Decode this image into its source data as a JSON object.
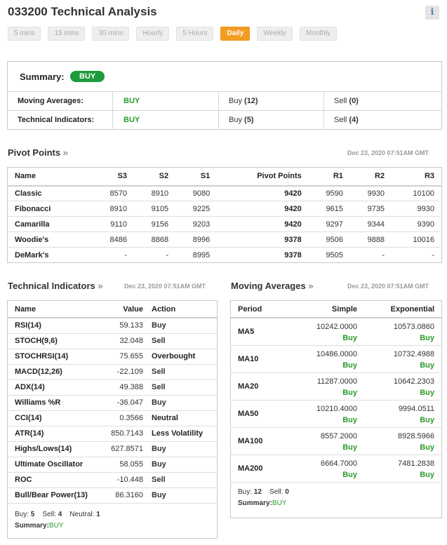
{
  "header": {
    "title": "033200 Technical Analysis",
    "info_icon": "i"
  },
  "timeframes": [
    {
      "label": "5 mins",
      "active": false
    },
    {
      "label": "15 mins",
      "active": false
    },
    {
      "label": "30 mins",
      "active": false
    },
    {
      "label": "Hourly",
      "active": false
    },
    {
      "label": "5 Hours",
      "active": false
    },
    {
      "label": "Daily",
      "active": true
    },
    {
      "label": "Weekly",
      "active": false
    },
    {
      "label": "Monthly",
      "active": false
    }
  ],
  "summary": {
    "label": "Summary:",
    "signal": "BUY",
    "rows": [
      {
        "name": "Moving Averages:",
        "signal": "BUY",
        "buy_label": "Buy",
        "buy_count": "(12)",
        "sell_label": "Sell",
        "sell_count": "(0)"
      },
      {
        "name": "Technical Indicators:",
        "signal": "BUY",
        "buy_label": "Buy",
        "buy_count": "(5)",
        "sell_label": "Sell",
        "sell_count": "(4)"
      }
    ]
  },
  "pivot_points": {
    "title": "Pivot Points",
    "arrow": "»",
    "timestamp": "Dec 23, 2020 07:51AM GMT",
    "columns": [
      "Name",
      "S3",
      "S2",
      "S1",
      "Pivot Points",
      "R1",
      "R2",
      "R3"
    ],
    "rows": [
      [
        "Classic",
        "8570",
        "8910",
        "9080",
        "9420",
        "9590",
        "9930",
        "10100"
      ],
      [
        "Fibonacci",
        "8910",
        "9105",
        "9225",
        "9420",
        "9615",
        "9735",
        "9930"
      ],
      [
        "Camarilla",
        "9110",
        "9156",
        "9203",
        "9420",
        "9297",
        "9344",
        "9390"
      ],
      [
        "Woodie's",
        "8486",
        "8868",
        "8996",
        "9378",
        "9506",
        "9888",
        "10016"
      ],
      [
        "DeMark's",
        "-",
        "-",
        "8995",
        "9378",
        "9505",
        "-",
        "-"
      ]
    ]
  },
  "technical_indicators": {
    "title": "Technical Indicators",
    "arrow": "»",
    "timestamp": "Dec 23, 2020 07:51AM GMT",
    "columns": [
      "Name",
      "Value",
      "Action"
    ],
    "rows": [
      {
        "name": "RSI(14)",
        "value": "59.133",
        "action": "Buy",
        "tone": "buy"
      },
      {
        "name": "STOCH(9,6)",
        "value": "32.048",
        "action": "Sell",
        "tone": "sell"
      },
      {
        "name": "STOCHRSI(14)",
        "value": "75.655",
        "action": "Overbought",
        "tone": "neutral"
      },
      {
        "name": "MACD(12,26)",
        "value": "-22.109",
        "action": "Sell",
        "tone": "sell"
      },
      {
        "name": "ADX(14)",
        "value": "49.388",
        "action": "Sell",
        "tone": "sell"
      },
      {
        "name": "Williams %R",
        "value": "-36.047",
        "action": "Buy",
        "tone": "buy"
      },
      {
        "name": "CCI(14)",
        "value": "0.3566",
        "action": "Neutral",
        "tone": "neutral"
      },
      {
        "name": "ATR(14)",
        "value": "850.7143",
        "action": "Less Volatility",
        "tone": "neutral"
      },
      {
        "name": "Highs/Lows(14)",
        "value": "627.8571",
        "action": "Buy",
        "tone": "buy"
      },
      {
        "name": "Ultimate Oscillator",
        "value": "58.055",
        "action": "Buy",
        "tone": "buy"
      },
      {
        "name": "ROC",
        "value": "-10.448",
        "action": "Sell",
        "tone": "sell"
      },
      {
        "name": "Bull/Bear Power(13)",
        "value": "86.3160",
        "action": "Buy",
        "tone": "buy"
      }
    ],
    "footer": {
      "buy_label": "Buy:",
      "buy": "5",
      "sell_label": "Sell:",
      "sell": "4",
      "neutral_label": "Neutral:",
      "neutral": "1",
      "summary_label": "Summary:",
      "summary": "BUY"
    }
  },
  "moving_averages": {
    "title": "Moving Averages",
    "arrow": "»",
    "timestamp": "Dec 23, 2020 07:51AM GMT",
    "columns": [
      "Period",
      "Simple",
      "Exponential"
    ],
    "rows": [
      {
        "period": "MA5",
        "simple": "10242.0000",
        "simple_action": "Buy",
        "exp": "10573.0860",
        "exp_action": "Buy"
      },
      {
        "period": "MA10",
        "simple": "10486.0000",
        "simple_action": "Buy",
        "exp": "10732.4988",
        "exp_action": "Buy"
      },
      {
        "period": "MA20",
        "simple": "11287.0000",
        "simple_action": "Buy",
        "exp": "10642.2303",
        "exp_action": "Buy"
      },
      {
        "period": "MA50",
        "simple": "10210.4000",
        "simple_action": "Buy",
        "exp": "9994.0511",
        "exp_action": "Buy"
      },
      {
        "period": "MA100",
        "simple": "8557.2000",
        "simple_action": "Buy",
        "exp": "8928.5966",
        "exp_action": "Buy"
      },
      {
        "period": "MA200",
        "simple": "6664.7000",
        "simple_action": "Buy",
        "exp": "7481.2838",
        "exp_action": "Buy"
      }
    ],
    "footer": {
      "buy_label": "Buy:",
      "buy": "12",
      "sell_label": "Sell:",
      "sell": "0",
      "summary_label": "Summary:",
      "summary": "BUY"
    }
  },
  "colors": {
    "buy": "#2c9b2c",
    "sell": "#d21c1c",
    "active_tab": "#f39c22",
    "pill": "#1d9b3d"
  }
}
